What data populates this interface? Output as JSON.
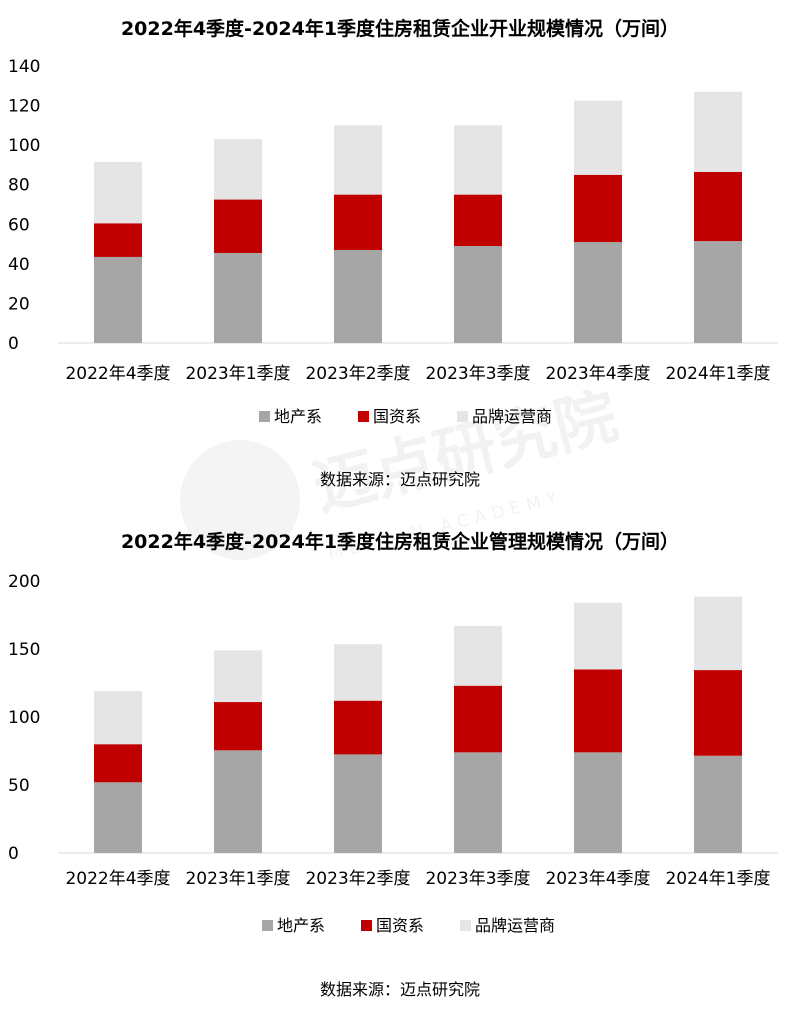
{
  "colors": {
    "地产系": "#a6a6a6",
    "国资系": "#c00000",
    "品牌运营商": "#e5e5e5",
    "axis": "#d9d9d9",
    "text": "#000000"
  },
  "watermark": {
    "name": "迈点研究院",
    "sub": "MEADIN ACADEMY"
  },
  "charts": [
    {
      "title": "2022年4季度-2024年1季度住房租赁企业开业规模情况（万间）",
      "source": "数据来源：迈点研究院",
      "chart_data": {
        "type": "bar",
        "stacked": true,
        "categories": [
          "2022年4季度",
          "2023年1季度",
          "2023年2季度",
          "2023年3季度",
          "2023年4季度",
          "2024年1季度"
        ],
        "series": [
          {
            "name": "地产系",
            "values": [
              43.5,
              45.5,
              47,
              49,
              51,
              51.5
            ]
          },
          {
            "name": "国资系",
            "values": [
              17,
              27,
              28,
              26,
              34,
              35
            ]
          },
          {
            "name": "品牌运营商",
            "values": [
              31,
              30.5,
              35,
              35,
              37.5,
              40.5
            ]
          }
        ],
        "ylim": [
          0,
          140
        ],
        "yticks": [
          "0",
          "20",
          "40",
          "60",
          "80",
          "100",
          "120",
          "140"
        ],
        "legend": "bottom",
        "grid": false
      }
    },
    {
      "title": "2022年4季度-2024年1季度住房租赁企业管理规模情况（万间）",
      "source": "数据来源：迈点研究院",
      "chart_data": {
        "type": "bar",
        "stacked": true,
        "categories": [
          "2022年4季度",
          "2023年1季度",
          "2023年2季度",
          "2023年3季度",
          "2023年4季度",
          "2024年1季度"
        ],
        "series": [
          {
            "name": "地产系",
            "values": [
              52,
              75.5,
              72.5,
              74,
              74,
              71.5
            ]
          },
          {
            "name": "国资系",
            "values": [
              28,
              35.5,
              39.5,
              49,
              61,
              63
            ]
          },
          {
            "name": "品牌运营商",
            "values": [
              39,
              38,
              41.5,
              44,
              49,
              54
            ]
          }
        ],
        "ylim": [
          0,
          200
        ],
        "yticks": [
          "0",
          "50",
          "100",
          "150",
          "200"
        ],
        "legend": "bottom",
        "grid": false
      }
    }
  ]
}
